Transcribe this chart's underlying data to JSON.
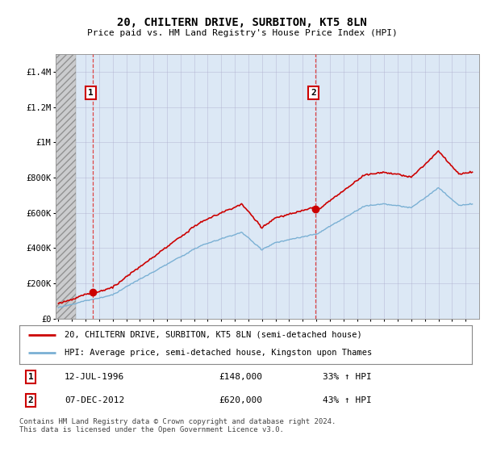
{
  "title": "20, CHILTERN DRIVE, SURBITON, KT5 8LN",
  "subtitle": "Price paid vs. HM Land Registry's House Price Index (HPI)",
  "ylim": [
    0,
    1500000
  ],
  "yticks": [
    0,
    200000,
    400000,
    600000,
    800000,
    1000000,
    1200000,
    1400000
  ],
  "ytick_labels": [
    "£0",
    "£200K",
    "£400K",
    "£600K",
    "£800K",
    "£1M",
    "£1.2M",
    "£1.4M"
  ],
  "xlim_start": 1993.8,
  "xlim_end": 2025.0,
  "line1_color": "#cc0000",
  "line2_color": "#7ab0d4",
  "marker_color": "#cc0000",
  "annotation_box_color": "#cc0000",
  "plot_bg_color": "#dce8f5",
  "hatch_color": "#b0b0b0",
  "dashed_vline_color": "#dd4444",
  "transaction1_x": 1996.54,
  "transaction1_y": 148000,
  "transaction2_x": 2012.93,
  "transaction2_y": 620000,
  "legend_line1": "20, CHILTERN DRIVE, SURBITON, KT5 8LN (semi-detached house)",
  "legend_line2": "HPI: Average price, semi-detached house, Kingston upon Thames",
  "footnote": "Contains HM Land Registry data © Crown copyright and database right 2024.\nThis data is licensed under the Open Government Licence v3.0.",
  "background_color": "#ffffff"
}
